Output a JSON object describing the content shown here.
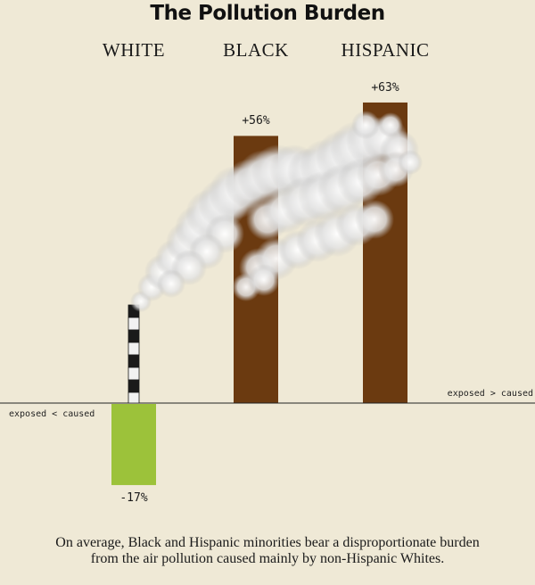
{
  "title": "The Pollution Burden",
  "chart_data": {
    "type": "bar",
    "categories": [
      "WHITE",
      "BLACK",
      "HISPANIC"
    ],
    "values": [
      -17,
      56,
      63
    ],
    "value_labels": [
      "-17%",
      "+56%",
      "+63%"
    ],
    "ylim": [
      -30,
      75
    ],
    "grid": false,
    "colors": {
      "negative": "#9cc23a",
      "positive": "#6b3a10",
      "smoke": "#d8d8d8",
      "chimney_stripe_dark": "#1a1a1a",
      "chimney_stripe_light": "#f2f2f2"
    },
    "annotations": {
      "right": "exposed > caused",
      "left": "exposed < caused"
    }
  },
  "caption": "On average, Black and Hispanic minorities bear a disproportionate burden from the air pollution caused mainly by non-Hispanic Whites."
}
